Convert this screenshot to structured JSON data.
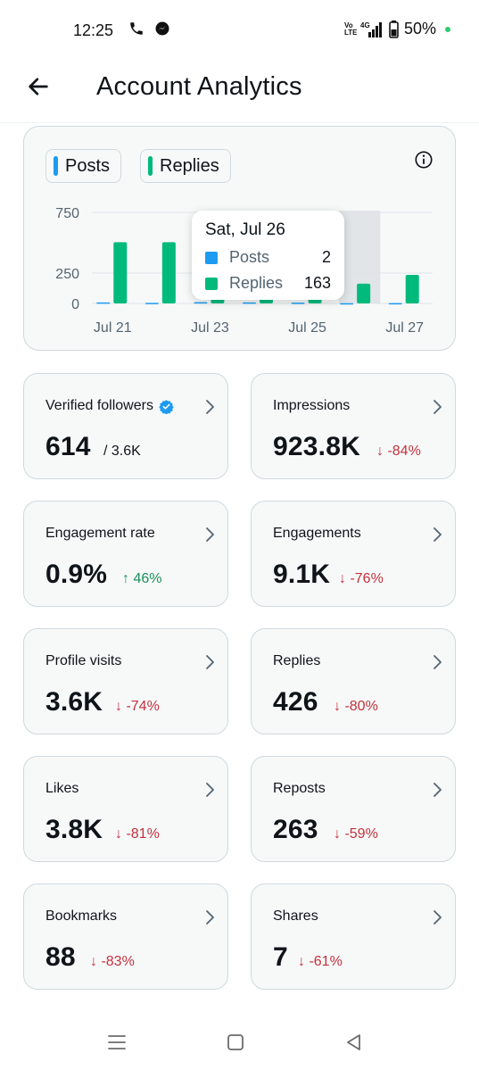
{
  "status_bar": {
    "time": "12:25",
    "network_top": "Vo",
    "network_bottom": "LTE",
    "net_gen": "4G",
    "battery": "50%"
  },
  "header": {
    "title": "Account Analytics"
  },
  "chart": {
    "legend": [
      {
        "label": "Posts",
        "color": "#1d9bf0"
      },
      {
        "label": "Replies",
        "color": "#00ba7c"
      }
    ],
    "tooltip": {
      "title": "Sat, Jul 26",
      "rows": [
        {
          "label": "Posts",
          "value": "2"
        },
        {
          "label": "Replies",
          "value": "163"
        }
      ]
    }
  },
  "chart_data": {
    "type": "bar",
    "categories": [
      "Jul 21",
      "Jul 22",
      "Jul 23",
      "Jul 24",
      "Jul 25",
      "Jul 26",
      "Jul 27"
    ],
    "x_tick_labels": [
      "Jul 21",
      "Jul 23",
      "Jul 25",
      "Jul 27"
    ],
    "y_tick_labels": [
      "750",
      "250",
      "0"
    ],
    "series": [
      {
        "name": "Posts",
        "values": [
          8,
          5,
          10,
          8,
          6,
          2,
          3
        ],
        "color": "#1d9bf0"
      },
      {
        "name": "Replies",
        "values": [
          505,
          505,
          160,
          140,
          140,
          163,
          235
        ],
        "color": "#00ba7c"
      }
    ],
    "ylim": [
      0,
      750
    ],
    "highlighted_category": "Jul 26"
  },
  "metrics": [
    {
      "label": "Verified followers",
      "value": "614",
      "sub": "/ 3.6K",
      "verified": true
    },
    {
      "label": "Impressions",
      "value": "923.8K",
      "change": "↓ -84%",
      "direction": "down"
    },
    {
      "label": "Engagement rate",
      "value": "0.9%",
      "change": "↑ 46%",
      "direction": "up"
    },
    {
      "label": "Engagements",
      "value": "9.1K",
      "change": "↓ -76%",
      "direction": "down"
    },
    {
      "label": "Profile visits",
      "value": "3.6K",
      "change": "↓ -74%",
      "direction": "down"
    },
    {
      "label": "Replies",
      "value": "426",
      "change": "↓ -80%",
      "direction": "down"
    },
    {
      "label": "Likes",
      "value": "3.8K",
      "change": "↓ -81%",
      "direction": "down"
    },
    {
      "label": "Reposts",
      "value": "263",
      "change": "↓ -59%",
      "direction": "down"
    },
    {
      "label": "Bookmarks",
      "value": "88",
      "change": "↓ -83%",
      "direction": "down"
    },
    {
      "label": "Shares",
      "value": "7",
      "change": "↓ -61%",
      "direction": "down"
    }
  ],
  "nav_bar": {
    "icons": [
      "menu-icon",
      "home-square-icon",
      "back-triangle-icon"
    ]
  }
}
